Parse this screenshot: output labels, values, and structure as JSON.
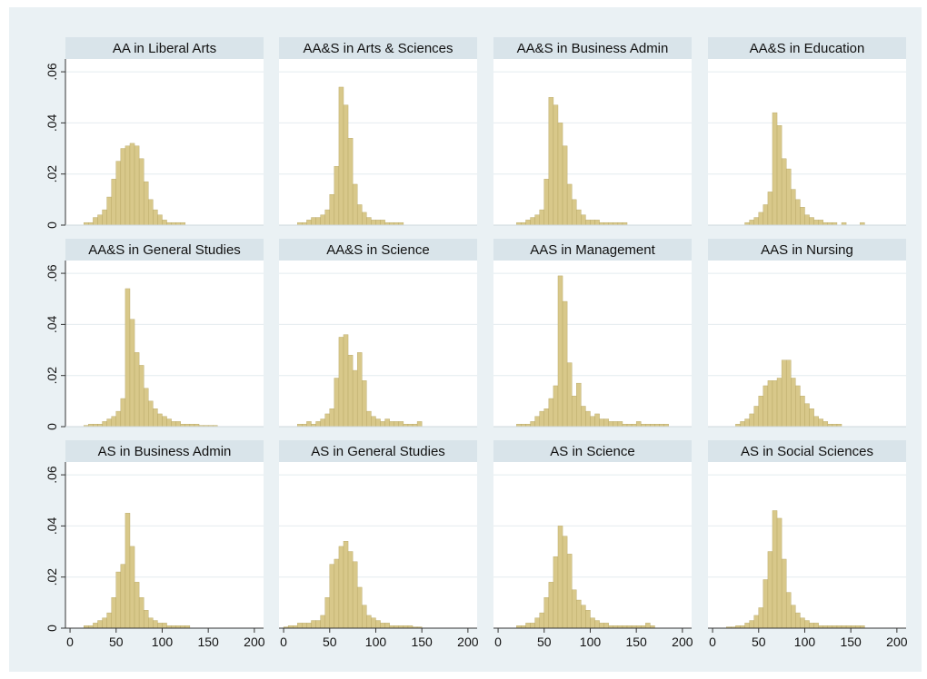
{
  "colors": {
    "outer_background": "#eaf1f4",
    "plot_background": "#ffffff",
    "title_strip": "#d9e4ea",
    "bar_fill": "#d8c88a",
    "bar_stroke": "#b5a461",
    "grid": "#e4ecef",
    "axis": "#333333",
    "text": "#111111"
  },
  "chart_data": {
    "type": "bar",
    "subtype": "histogram small multiples",
    "layout": {
      "rows": 3,
      "cols": 4
    },
    "bin_width": 5,
    "xlim": [
      -5,
      210
    ],
    "ylim": [
      0,
      0.065
    ],
    "x_ticks": [
      0,
      50,
      100,
      150,
      200
    ],
    "x_tick_labels": [
      "0",
      "50",
      "100",
      "150",
      "200"
    ],
    "y_ticks": [
      0,
      0.02,
      0.04,
      0.06
    ],
    "y_tick_labels": [
      "0",
      ".02",
      ".04",
      ".06"
    ],
    "grid": true,
    "panels": [
      {
        "title": "AA in Liberal Arts",
        "bins": [
          15,
          20,
          25,
          30,
          35,
          40,
          45,
          50,
          55,
          60,
          65,
          70,
          75,
          80,
          85,
          90,
          95,
          100,
          105,
          110,
          115,
          120
        ],
        "values": [
          0.001,
          0.001,
          0.003,
          0.004,
          0.006,
          0.011,
          0.018,
          0.025,
          0.03,
          0.031,
          0.032,
          0.031,
          0.026,
          0.017,
          0.01,
          0.006,
          0.004,
          0.002,
          0.001,
          0.001,
          0.001,
          0.001
        ]
      },
      {
        "title": "AA&S in Arts & Sciences",
        "bins": [
          15,
          20,
          25,
          30,
          35,
          40,
          45,
          50,
          55,
          60,
          65,
          70,
          75,
          80,
          85,
          90,
          95,
          100,
          105,
          110,
          115,
          120,
          125
        ],
        "values": [
          0.001,
          0.001,
          0.002,
          0.003,
          0.003,
          0.004,
          0.006,
          0.012,
          0.023,
          0.054,
          0.047,
          0.034,
          0.016,
          0.008,
          0.005,
          0.003,
          0.002,
          0.002,
          0.002,
          0.001,
          0.001,
          0.001,
          0.001
        ]
      },
      {
        "title": "AA&S in Business Admin",
        "bins": [
          20,
          25,
          30,
          35,
          40,
          45,
          50,
          55,
          60,
          65,
          70,
          75,
          80,
          85,
          90,
          95,
          100,
          105,
          110,
          115,
          120,
          125,
          130,
          135
        ],
        "values": [
          0.001,
          0.001,
          0.002,
          0.003,
          0.004,
          0.006,
          0.018,
          0.05,
          0.047,
          0.04,
          0.031,
          0.016,
          0.01,
          0.006,
          0.004,
          0.002,
          0.002,
          0.002,
          0.001,
          0.001,
          0.001,
          0.001,
          0.001,
          0.001
        ]
      },
      {
        "title": "AA&S in Education",
        "bins": [
          35,
          40,
          45,
          50,
          55,
          60,
          65,
          70,
          75,
          80,
          85,
          90,
          95,
          100,
          105,
          110,
          115,
          120,
          125,
          130,
          140,
          160
        ],
        "values": [
          0.001,
          0.002,
          0.003,
          0.005,
          0.008,
          0.013,
          0.044,
          0.039,
          0.026,
          0.022,
          0.014,
          0.01,
          0.007,
          0.004,
          0.003,
          0.002,
          0.002,
          0.001,
          0.001,
          0.001,
          0.001,
          0.001
        ]
      },
      {
        "title": "AA&S in General Studies",
        "bins": [
          15,
          20,
          25,
          30,
          35,
          40,
          45,
          50,
          55,
          60,
          65,
          70,
          75,
          80,
          85,
          90,
          95,
          100,
          105,
          110,
          115,
          120,
          125,
          130,
          135,
          140,
          145,
          150,
          155
        ],
        "values": [
          0.0005,
          0.001,
          0.001,
          0.001,
          0.002,
          0.003,
          0.004,
          0.006,
          0.011,
          0.054,
          0.042,
          0.029,
          0.024,
          0.015,
          0.01,
          0.007,
          0.005,
          0.004,
          0.003,
          0.002,
          0.002,
          0.001,
          0.001,
          0.001,
          0.001,
          0.0005,
          0.0005,
          0.0005,
          0.0005
        ]
      },
      {
        "title": "AA&S in Science",
        "bins": [
          15,
          20,
          25,
          30,
          35,
          40,
          45,
          50,
          55,
          60,
          65,
          70,
          75,
          80,
          85,
          90,
          95,
          100,
          105,
          110,
          115,
          120,
          125,
          130,
          135,
          140,
          145
        ],
        "values": [
          0.001,
          0.001,
          0.002,
          0.001,
          0.002,
          0.003,
          0.005,
          0.007,
          0.019,
          0.035,
          0.036,
          0.028,
          0.022,
          0.029,
          0.018,
          0.006,
          0.004,
          0.003,
          0.002,
          0.003,
          0.002,
          0.002,
          0.002,
          0.001,
          0.001,
          0.001,
          0.002
        ]
      },
      {
        "title": "AAS in Management",
        "bins": [
          20,
          25,
          30,
          35,
          40,
          45,
          50,
          55,
          60,
          65,
          70,
          75,
          80,
          85,
          90,
          95,
          100,
          105,
          110,
          115,
          120,
          125,
          130,
          135,
          140,
          145,
          150,
          155,
          160,
          165,
          170,
          175,
          180
        ],
        "values": [
          0.001,
          0.001,
          0.001,
          0.002,
          0.004,
          0.006,
          0.007,
          0.011,
          0.016,
          0.059,
          0.049,
          0.025,
          0.012,
          0.017,
          0.008,
          0.006,
          0.004,
          0.005,
          0.003,
          0.003,
          0.002,
          0.002,
          0.002,
          0.001,
          0.001,
          0.001,
          0.002,
          0.001,
          0.001,
          0.001,
          0.001,
          0.001,
          0.001
        ]
      },
      {
        "title": "AAS in Nursing",
        "bins": [
          25,
          30,
          35,
          40,
          45,
          50,
          55,
          60,
          65,
          70,
          75,
          80,
          85,
          90,
          95,
          100,
          105,
          110,
          115,
          120,
          125,
          130,
          135
        ],
        "values": [
          0.001,
          0.002,
          0.003,
          0.005,
          0.008,
          0.012,
          0.016,
          0.018,
          0.018,
          0.019,
          0.026,
          0.026,
          0.019,
          0.016,
          0.012,
          0.009,
          0.007,
          0.004,
          0.003,
          0.002,
          0.001,
          0.001,
          0.001
        ]
      },
      {
        "title": "AS in Business Admin",
        "bins": [
          15,
          20,
          25,
          30,
          35,
          40,
          45,
          50,
          55,
          60,
          65,
          70,
          75,
          80,
          85,
          90,
          95,
          100,
          105,
          110,
          115,
          120,
          125
        ],
        "values": [
          0.001,
          0.001,
          0.002,
          0.003,
          0.004,
          0.006,
          0.012,
          0.022,
          0.025,
          0.045,
          0.032,
          0.018,
          0.012,
          0.007,
          0.004,
          0.003,
          0.002,
          0.002,
          0.001,
          0.001,
          0.001,
          0.001,
          0.001
        ]
      },
      {
        "title": "AS in General Studies",
        "bins": [
          0,
          5,
          10,
          15,
          20,
          25,
          30,
          35,
          40,
          45,
          50,
          55,
          60,
          65,
          70,
          75,
          80,
          85,
          90,
          95,
          100,
          105,
          110,
          115,
          120,
          125,
          130,
          135,
          140,
          145
        ],
        "values": [
          0.0005,
          0.001,
          0.001,
          0.002,
          0.002,
          0.002,
          0.003,
          0.003,
          0.005,
          0.012,
          0.025,
          0.027,
          0.032,
          0.034,
          0.03,
          0.026,
          0.016,
          0.009,
          0.005,
          0.004,
          0.003,
          0.002,
          0.002,
          0.001,
          0.001,
          0.001,
          0.001,
          0.001,
          0.0005,
          0.0005
        ]
      },
      {
        "title": "AS in Science",
        "bins": [
          20,
          25,
          30,
          35,
          40,
          45,
          50,
          55,
          60,
          65,
          70,
          75,
          80,
          85,
          90,
          95,
          100,
          105,
          110,
          115,
          120,
          125,
          130,
          135,
          140,
          145,
          150,
          155,
          160,
          165
        ],
        "values": [
          0.001,
          0.001,
          0.002,
          0.002,
          0.004,
          0.006,
          0.012,
          0.018,
          0.028,
          0.04,
          0.036,
          0.029,
          0.015,
          0.011,
          0.009,
          0.007,
          0.004,
          0.003,
          0.002,
          0.002,
          0.001,
          0.001,
          0.001,
          0.001,
          0.001,
          0.001,
          0.001,
          0.001,
          0.002,
          0.001
        ]
      },
      {
        "title": "AS in Social Sciences",
        "bins": [
          15,
          20,
          25,
          30,
          35,
          40,
          45,
          50,
          55,
          60,
          65,
          70,
          75,
          80,
          85,
          90,
          95,
          100,
          105,
          110,
          115,
          120,
          125,
          130,
          135,
          140,
          145,
          150,
          155,
          160
        ],
        "values": [
          0.0005,
          0.0005,
          0.001,
          0.001,
          0.002,
          0.003,
          0.005,
          0.008,
          0.019,
          0.03,
          0.046,
          0.043,
          0.027,
          0.014,
          0.009,
          0.006,
          0.004,
          0.003,
          0.002,
          0.002,
          0.001,
          0.001,
          0.001,
          0.001,
          0.001,
          0.001,
          0.001,
          0.001,
          0.001,
          0.001
        ]
      }
    ]
  }
}
